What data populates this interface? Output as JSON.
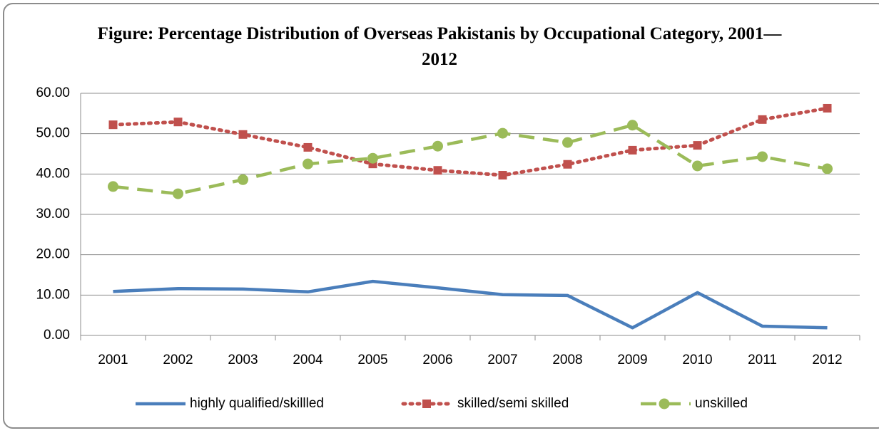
{
  "chart_data": {
    "type": "line",
    "title": "Figure: Percentage Distribution of Overseas Pakistanis by Occupational Category, 2001—2012",
    "categories": [
      "2001",
      "2002",
      "2003",
      "2004",
      "2005",
      "2006",
      "2007",
      "2008",
      "2009",
      "2010",
      "2011",
      "2012"
    ],
    "series": [
      {
        "name": "highly qualified/skillled",
        "color": "#4a7ebb",
        "style": "solid",
        "marker": "none",
        "values": [
          10.9,
          11.6,
          11.5,
          10.8,
          13.4,
          11.8,
          10.1,
          9.9,
          1.9,
          10.6,
          2.3,
          1.9
        ]
      },
      {
        "name": "skilled/semi skilled",
        "color": "#c0504d",
        "style": "dotted",
        "marker": "square",
        "values": [
          52.2,
          52.9,
          49.8,
          46.6,
          42.5,
          40.9,
          39.7,
          42.4,
          45.9,
          47.1,
          53.5,
          56.3
        ]
      },
      {
        "name": "unskilled",
        "color": "#9bbb59",
        "style": "dashed",
        "marker": "circle",
        "values": [
          36.9,
          35.1,
          38.6,
          42.5,
          43.9,
          46.9,
          50.1,
          47.8,
          52.1,
          42.0,
          44.3,
          41.3
        ]
      }
    ],
    "ylim": [
      0,
      60
    ],
    "yticks": [
      {
        "value": 0,
        "label": "0.00"
      },
      {
        "value": 10,
        "label": "10.00"
      },
      {
        "value": 20,
        "label": "20.00"
      },
      {
        "value": 30,
        "label": "30.00"
      },
      {
        "value": 40,
        "label": "40.00"
      },
      {
        "value": 50,
        "label": "50.00"
      },
      {
        "value": 60,
        "label": "60.00"
      }
    ],
    "grid": true,
    "legend": "bottom"
  }
}
